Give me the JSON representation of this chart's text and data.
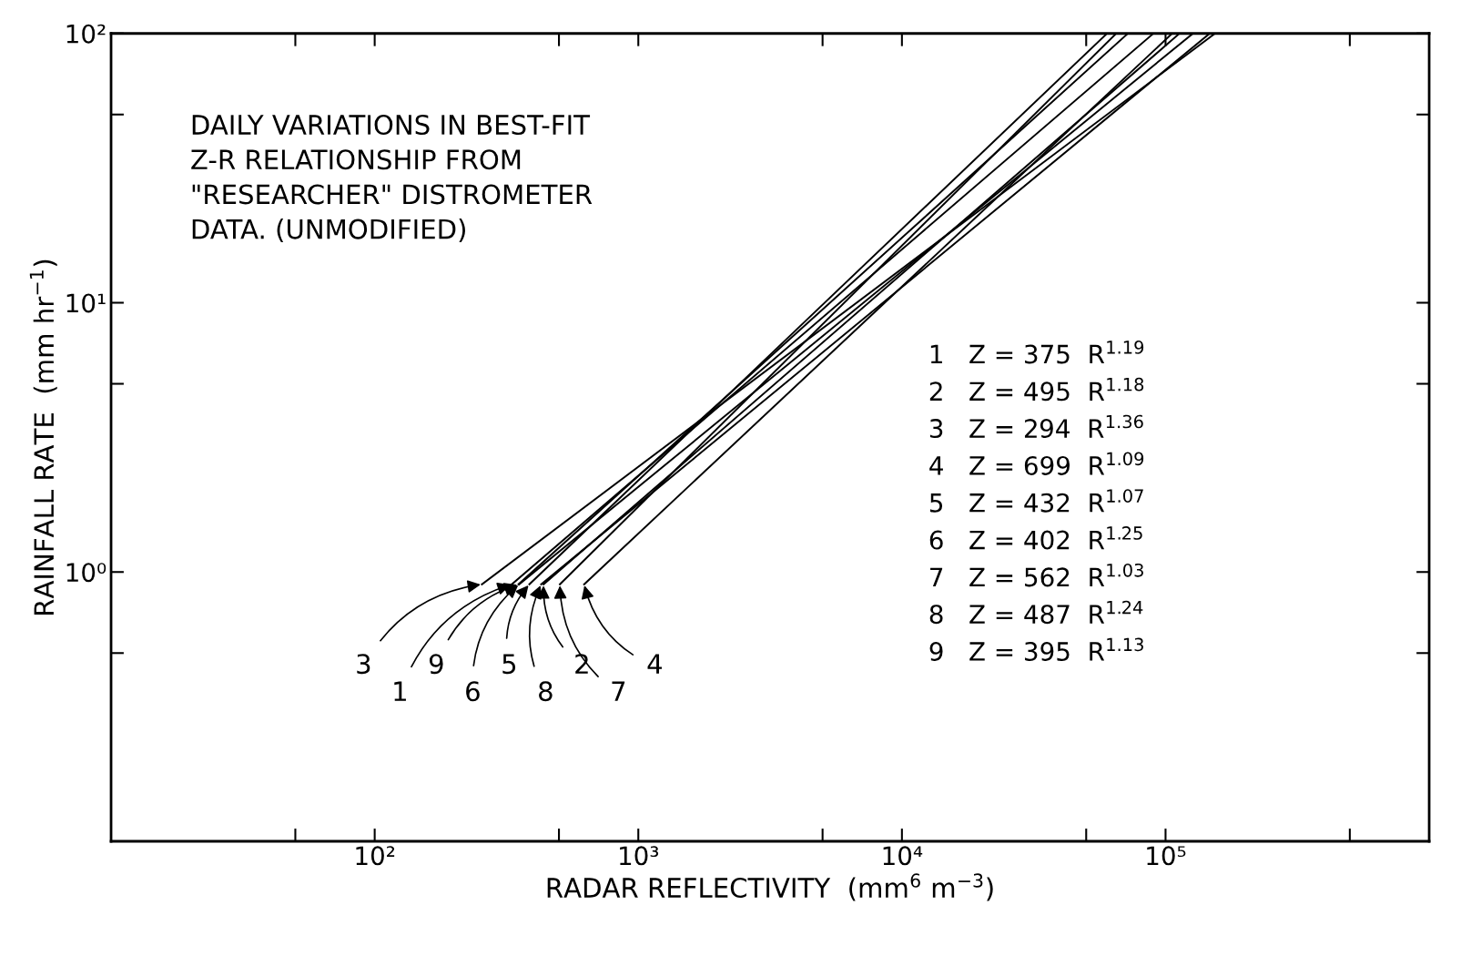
{
  "chart_data": {
    "type": "line",
    "title": "DAILY VARIATIONS IN BEST-FIT\nZ-R RELATIONSHIP FROM\n\"RESEARCHER\" DISTROMETER\nDATA. (UNMODIFIED)",
    "xlabel": "RADAR REFLECTIVITY  (mm$^{6}$ m$^{−3}$)",
    "ylabel": "RAINFALL RATE  (mm hr$^{−1}$)",
    "log": "xy",
    "grid": false,
    "legend": false,
    "line_style": "solid",
    "xlim": [
      10,
      1000000
    ],
    "ylim": [
      0.1,
      100
    ],
    "xticks": [
      {
        "value": 50,
        "label": null
      },
      {
        "value": 100,
        "label": "10²"
      },
      {
        "value": 500,
        "label": null
      },
      {
        "value": 1000,
        "label": "10³"
      },
      {
        "value": 5000,
        "label": null
      },
      {
        "value": 10000,
        "label": "10⁴"
      },
      {
        "value": 50000,
        "label": null
      },
      {
        "value": 100000,
        "label": "10⁵"
      },
      {
        "value": 500000,
        "label": null
      }
    ],
    "yticks": [
      {
        "value": 0.5,
        "label": null
      },
      {
        "value": 1,
        "label": "10⁰"
      },
      {
        "value": 5,
        "label": null
      },
      {
        "value": 10,
        "label": "10¹"
      },
      {
        "value": 50,
        "label": null
      },
      {
        "value": 100,
        "label": "10²"
      }
    ],
    "series": [
      {
        "color": "#000000",
        "x": [
          331,
          90000
        ],
        "values": [
          0.9,
          100
        ]
      },
      {
        "color": "#000000",
        "x": [
          437,
          113000
        ],
        "values": [
          0.9,
          100
        ]
      },
      {
        "color": "#000000",
        "x": [
          255,
          154000
        ],
        "values": [
          0.9,
          100
        ]
      },
      {
        "color": "#000000",
        "x": [
          623,
          106000
        ],
        "values": [
          0.9,
          100
        ]
      },
      {
        "color": "#000000",
        "x": [
          386,
          60000
        ],
        "values": [
          0.9,
          100
        ]
      },
      {
        "color": "#000000",
        "x": [
          353,
          127000
        ],
        "values": [
          0.9,
          100
        ]
      },
      {
        "color": "#000000",
        "x": [
          504,
          65000
        ],
        "values": [
          0.9,
          100
        ]
      },
      {
        "color": "#000000",
        "x": [
          428,
          147000
        ],
        "values": [
          0.9,
          100
        ]
      },
      {
        "color": "#000000",
        "x": [
          351,
          72000
        ],
        "values": [
          0.9,
          100
        ]
      }
    ],
    "annotations": [
      {
        "text": "1",
        "x": 331,
        "y": 0.9
      },
      {
        "text": "2",
        "x": 437,
        "y": 0.9
      },
      {
        "text": "3",
        "x": 255,
        "y": 0.9
      },
      {
        "text": "4",
        "x": 623,
        "y": 0.9
      },
      {
        "text": "5",
        "x": 386,
        "y": 0.9
      },
      {
        "text": "6",
        "x": 353,
        "y": 0.9
      },
      {
        "text": "7",
        "x": 504,
        "y": 0.9
      },
      {
        "text": "8",
        "x": 428,
        "y": 0.9
      },
      {
        "text": "9",
        "x": 351,
        "y": 0.9
      },
      "1   Z = 375  R$^{1.19}$",
      "2   Z = 495  R$^{1.18}$",
      "3   Z = 294  R$^{1.36}$",
      "4   Z = 699  R$^{1.09}$",
      "5   Z = 432  R$^{1.07}$",
      "6   Z = 402  R$^{1.25}$",
      "7   Z = 562  R$^{1.03}$",
      "8   Z = 487  R$^{1.24}$",
      "9   Z = 395  R$^{1.13}$"
    ]
  }
}
